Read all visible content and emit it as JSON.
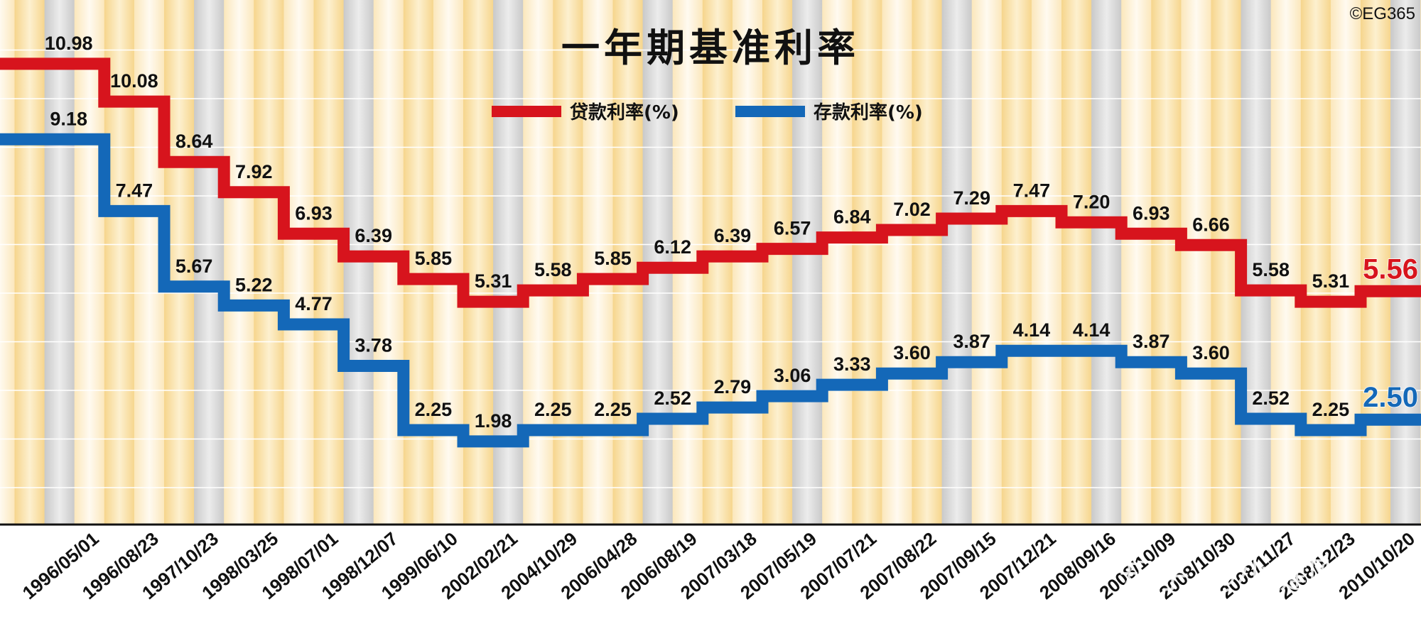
{
  "chart_data": {
    "type": "line",
    "style": "step",
    "title": "一年期基准利率",
    "copyright": "©EG365",
    "watermark": "知乎 @小健刚",
    "ylim": [
      0,
      11.5
    ],
    "categories": [
      "1996/05/01",
      "1996/08/23",
      "1997/10/23",
      "1998/03/25",
      "1998/07/01",
      "1998/12/07",
      "1999/06/10",
      "2002/02/21",
      "2004/10/29",
      "2006/04/28",
      "2006/08/19",
      "2007/03/18",
      "2007/05/19",
      "2007/07/21",
      "2007/08/22",
      "2007/09/15",
      "2007/12/21",
      "2008/09/16",
      "2008/10/09",
      "2008/10/30",
      "2008/11/27",
      "2008/12/23",
      "2010/10/20"
    ],
    "series": [
      {
        "name": "贷款利率(%)",
        "color": "#d7141d",
        "values": [
          10.98,
          10.08,
          8.64,
          7.92,
          6.93,
          6.39,
          5.85,
          5.31,
          5.58,
          5.85,
          6.12,
          6.39,
          6.57,
          6.84,
          7.02,
          7.29,
          7.47,
          7.2,
          6.93,
          6.66,
          5.58,
          5.31,
          5.56
        ],
        "labels": [
          "10.98",
          "10.08",
          "8.64",
          "7.92",
          "6.93",
          "6.39",
          "5.85",
          "5.31",
          "5.58",
          "5.85",
          "6.12",
          "6.39",
          "6.57",
          "6.84",
          "7.02",
          "7.29",
          "7.47",
          "7.20",
          "6.93",
          "6.66",
          "5.58",
          "5.31",
          "5.56"
        ]
      },
      {
        "name": "存款利率(%)",
        "color": "#1468b8",
        "values": [
          9.18,
          7.47,
          5.67,
          5.22,
          4.77,
          3.78,
          2.25,
          1.98,
          2.25,
          2.25,
          2.52,
          2.79,
          3.06,
          3.33,
          3.6,
          3.87,
          4.14,
          4.14,
          3.87,
          3.6,
          2.52,
          2.25,
          2.5
        ],
        "labels": [
          "9.18",
          "7.47",
          "5.67",
          "5.22",
          "4.77",
          "3.78",
          "2.25",
          "1.98",
          "2.25",
          "2.25",
          "2.52",
          "2.79",
          "3.06",
          "3.33",
          "3.60",
          "3.87",
          "4.14",
          "4.14",
          "3.87",
          "3.60",
          "2.52",
          "2.25",
          "2.50"
        ]
      }
    ],
    "legend": {
      "position": "top-center"
    },
    "xlabel": "",
    "ylabel": ""
  }
}
